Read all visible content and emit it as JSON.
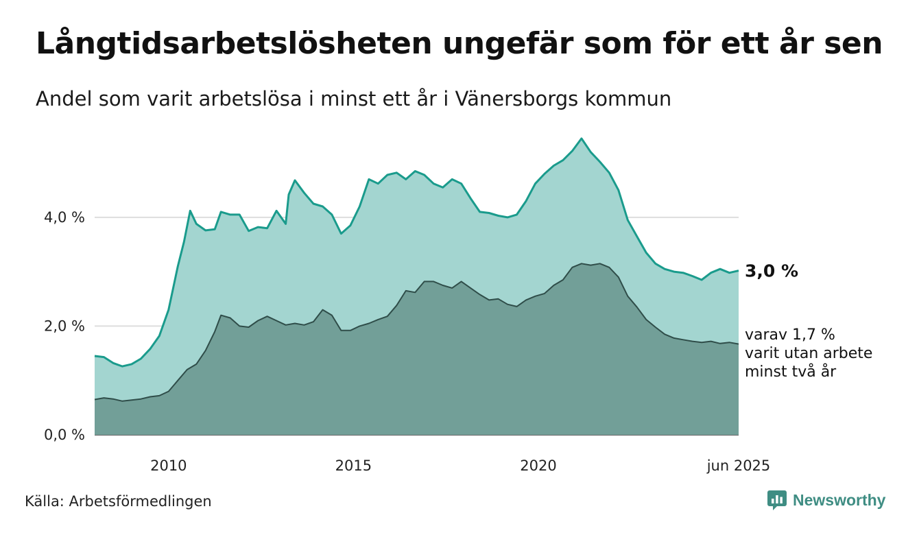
{
  "header": {
    "title": "Långtidsarbetslösheten ungefär som för ett år sen",
    "subtitle": "Andel som varit arbetslösa i minst ett år i Vänersborgs kommun"
  },
  "footer": {
    "source": "Källa: Arbetsförmedlingen",
    "brand": "Newsworthy",
    "brand_icon": "newsworthy-logo-icon"
  },
  "colors": {
    "outer_fill": "#a3d5d0",
    "outer_line": "#1a9b8c",
    "inner_fill": "#729f98",
    "inner_line": "#2f4d49",
    "grid": "#dddddd",
    "brand": "#3f8d83"
  },
  "chart_data": {
    "type": "area",
    "x_start": "2008-01",
    "x_end": "2025-06",
    "ylim": [
      0,
      5.6
    ],
    "yticks": [
      {
        "value": 0,
        "label": "0,0 %"
      },
      {
        "value": 2,
        "label": "2,0 %"
      },
      {
        "value": 4,
        "label": "4,0 %"
      }
    ],
    "xticks": [
      {
        "date": "2010-01",
        "label": "2010"
      },
      {
        "date": "2015-01",
        "label": "2015"
      },
      {
        "date": "2020-01",
        "label": "2020"
      },
      {
        "date": "2025-06",
        "label": "jun 2025"
      }
    ],
    "grid": true,
    "series": [
      {
        "id": "minst-ett-ar",
        "end_label": "3,0 %",
        "points": [
          [
            "2008-01",
            1.45
          ],
          [
            "2008-04",
            1.43
          ],
          [
            "2008-07",
            1.32
          ],
          [
            "2008-10",
            1.26
          ],
          [
            "2009-01",
            1.3
          ],
          [
            "2009-04",
            1.4
          ],
          [
            "2009-07",
            1.58
          ],
          [
            "2009-10",
            1.82
          ],
          [
            "2010-01",
            2.3
          ],
          [
            "2010-04",
            3.1
          ],
          [
            "2010-06",
            3.55
          ],
          [
            "2010-08",
            4.12
          ],
          [
            "2010-10",
            3.88
          ],
          [
            "2011-01",
            3.76
          ],
          [
            "2011-04",
            3.78
          ],
          [
            "2011-06",
            4.1
          ],
          [
            "2011-09",
            4.05
          ],
          [
            "2011-12",
            4.05
          ],
          [
            "2012-03",
            3.75
          ],
          [
            "2012-06",
            3.82
          ],
          [
            "2012-09",
            3.8
          ],
          [
            "2012-12",
            4.12
          ],
          [
            "2013-03",
            3.88
          ],
          [
            "2013-04",
            4.42
          ],
          [
            "2013-06",
            4.68
          ],
          [
            "2013-09",
            4.45
          ],
          [
            "2013-12",
            4.25
          ],
          [
            "2014-03",
            4.2
          ],
          [
            "2014-06",
            4.05
          ],
          [
            "2014-09",
            3.7
          ],
          [
            "2014-12",
            3.85
          ],
          [
            "2015-03",
            4.2
          ],
          [
            "2015-06",
            4.7
          ],
          [
            "2015-09",
            4.62
          ],
          [
            "2015-12",
            4.78
          ],
          [
            "2016-03",
            4.82
          ],
          [
            "2016-06",
            4.7
          ],
          [
            "2016-09",
            4.85
          ],
          [
            "2016-12",
            4.78
          ],
          [
            "2017-03",
            4.62
          ],
          [
            "2017-06",
            4.55
          ],
          [
            "2017-09",
            4.7
          ],
          [
            "2017-12",
            4.62
          ],
          [
            "2018-03",
            4.35
          ],
          [
            "2018-06",
            4.1
          ],
          [
            "2018-09",
            4.08
          ],
          [
            "2018-12",
            4.03
          ],
          [
            "2019-03",
            4.0
          ],
          [
            "2019-06",
            4.05
          ],
          [
            "2019-09",
            4.3
          ],
          [
            "2019-12",
            4.62
          ],
          [
            "2020-03",
            4.8
          ],
          [
            "2020-06",
            4.95
          ],
          [
            "2020-09",
            5.05
          ],
          [
            "2020-12",
            5.22
          ],
          [
            "2021-03",
            5.45
          ],
          [
            "2021-06",
            5.2
          ],
          [
            "2021-09",
            5.02
          ],
          [
            "2021-12",
            4.82
          ],
          [
            "2022-03",
            4.5
          ],
          [
            "2022-06",
            3.95
          ],
          [
            "2022-09",
            3.65
          ],
          [
            "2022-12",
            3.35
          ],
          [
            "2023-03",
            3.15
          ],
          [
            "2023-06",
            3.05
          ],
          [
            "2023-09",
            3.0
          ],
          [
            "2023-12",
            2.98
          ],
          [
            "2024-03",
            2.92
          ],
          [
            "2024-06",
            2.85
          ],
          [
            "2024-09",
            2.98
          ],
          [
            "2024-12",
            3.05
          ],
          [
            "2025-03",
            2.98
          ],
          [
            "2025-06",
            3.02
          ]
        ]
      },
      {
        "id": "minst-tva-ar",
        "end_label_lines": [
          "varav 1,7 %",
          "varit utan arbete",
          "minst två år"
        ],
        "points": [
          [
            "2008-01",
            0.65
          ],
          [
            "2008-04",
            0.68
          ],
          [
            "2008-07",
            0.66
          ],
          [
            "2008-10",
            0.62
          ],
          [
            "2009-01",
            0.64
          ],
          [
            "2009-04",
            0.66
          ],
          [
            "2009-07",
            0.7
          ],
          [
            "2009-10",
            0.72
          ],
          [
            "2010-01",
            0.8
          ],
          [
            "2010-04",
            1.0
          ],
          [
            "2010-07",
            1.2
          ],
          [
            "2010-10",
            1.3
          ],
          [
            "2011-01",
            1.55
          ],
          [
            "2011-04",
            1.9
          ],
          [
            "2011-06",
            2.2
          ],
          [
            "2011-09",
            2.15
          ],
          [
            "2011-12",
            2.0
          ],
          [
            "2012-03",
            1.98
          ],
          [
            "2012-06",
            2.1
          ],
          [
            "2012-09",
            2.18
          ],
          [
            "2012-12",
            2.1
          ],
          [
            "2013-03",
            2.02
          ],
          [
            "2013-06",
            2.05
          ],
          [
            "2013-09",
            2.02
          ],
          [
            "2013-12",
            2.08
          ],
          [
            "2014-03",
            2.3
          ],
          [
            "2014-06",
            2.2
          ],
          [
            "2014-09",
            1.92
          ],
          [
            "2014-12",
            1.92
          ],
          [
            "2015-03",
            2.0
          ],
          [
            "2015-06",
            2.05
          ],
          [
            "2015-09",
            2.12
          ],
          [
            "2015-12",
            2.18
          ],
          [
            "2016-03",
            2.38
          ],
          [
            "2016-06",
            2.65
          ],
          [
            "2016-09",
            2.62
          ],
          [
            "2016-12",
            2.82
          ],
          [
            "2017-03",
            2.82
          ],
          [
            "2017-06",
            2.75
          ],
          [
            "2017-09",
            2.7
          ],
          [
            "2017-12",
            2.82
          ],
          [
            "2018-03",
            2.7
          ],
          [
            "2018-06",
            2.58
          ],
          [
            "2018-09",
            2.48
          ],
          [
            "2018-12",
            2.5
          ],
          [
            "2019-03",
            2.4
          ],
          [
            "2019-06",
            2.36
          ],
          [
            "2019-09",
            2.48
          ],
          [
            "2019-12",
            2.55
          ],
          [
            "2020-03",
            2.6
          ],
          [
            "2020-06",
            2.75
          ],
          [
            "2020-09",
            2.85
          ],
          [
            "2020-12",
            3.08
          ],
          [
            "2021-03",
            3.15
          ],
          [
            "2021-06",
            3.12
          ],
          [
            "2021-09",
            3.15
          ],
          [
            "2021-12",
            3.08
          ],
          [
            "2022-03",
            2.9
          ],
          [
            "2022-06",
            2.55
          ],
          [
            "2022-09",
            2.35
          ],
          [
            "2022-12",
            2.12
          ],
          [
            "2023-03",
            1.98
          ],
          [
            "2023-06",
            1.85
          ],
          [
            "2023-09",
            1.78
          ],
          [
            "2023-12",
            1.75
          ],
          [
            "2024-03",
            1.72
          ],
          [
            "2024-06",
            1.7
          ],
          [
            "2024-09",
            1.72
          ],
          [
            "2024-12",
            1.68
          ],
          [
            "2025-03",
            1.7
          ],
          [
            "2025-06",
            1.67
          ]
        ]
      }
    ]
  }
}
